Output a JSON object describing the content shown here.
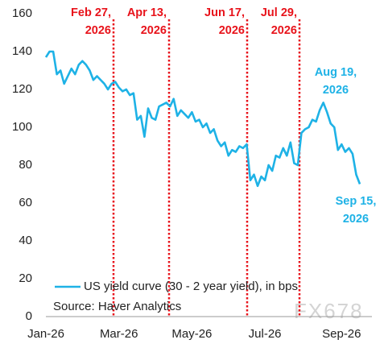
{
  "chart_data": {
    "type": "line",
    "categories": [
      "Jan-26",
      null,
      null,
      null,
      null,
      null,
      null,
      null,
      null,
      null,
      null,
      null,
      null,
      null,
      null,
      null,
      null,
      null,
      null,
      null,
      "Mar-26",
      null,
      null,
      null,
      null,
      null,
      null,
      null,
      null,
      null,
      null,
      null,
      null,
      null,
      null,
      null,
      null,
      null,
      null,
      null,
      "May-26",
      null,
      null,
      null,
      null,
      null,
      null,
      null,
      null,
      null,
      null,
      null,
      null,
      null,
      null,
      null,
      null,
      null,
      null,
      null,
      "Jul-26",
      null,
      null,
      null,
      null,
      null,
      null,
      null,
      null,
      null,
      null,
      null,
      null,
      null,
      null,
      null,
      null,
      null,
      null,
      null,
      null,
      "Sep-26",
      null,
      null,
      null,
      null,
      null
    ],
    "series": [
      {
        "name": "US yield curve (30 - 2 year yield), in bps",
        "color": "#1eb2e6",
        "values": [
          137,
          140,
          140,
          128,
          130,
          123,
          127,
          131,
          128,
          133,
          135,
          133,
          130,
          125,
          127,
          125,
          123,
          120,
          123,
          124,
          121,
          119,
          120,
          117,
          118,
          104,
          106,
          95,
          110,
          105,
          104,
          111,
          112,
          113,
          111,
          115,
          106,
          109,
          107,
          105,
          108,
          103,
          104,
          100,
          102,
          97,
          99,
          93,
          90,
          92,
          85,
          88,
          87,
          90,
          89,
          91,
          72,
          75,
          69,
          74,
          72,
          80,
          77,
          85,
          84,
          89,
          85,
          92,
          81,
          80,
          97,
          99,
          100,
          104,
          103,
          109,
          113,
          108,
          102,
          100,
          88,
          91,
          87,
          89,
          86,
          75,
          70
        ]
      }
    ],
    "ylim": [
      0,
      160
    ],
    "yticks": [
      0,
      20,
      40,
      60,
      80,
      100,
      120,
      140,
      160
    ],
    "grid": false,
    "legend": "bottom-left",
    "event_annotations": [
      {
        "lines": [
          "Feb 27,",
          "2026"
        ],
        "color": "#e8131b"
      },
      {
        "lines": [
          "Apr 13,",
          "2026"
        ],
        "color": "#e8131b"
      },
      {
        "lines": [
          "Jun 17,",
          "2026"
        ],
        "color": "#e8131b"
      },
      {
        "lines": [
          "Jul 29,",
          "2026"
        ],
        "color": "#e8131b"
      }
    ],
    "point_annotations": [
      {
        "lines": [
          "Aug 19,",
          "2026"
        ],
        "color": "#1eb2e6"
      },
      {
        "lines": [
          "Sep 15,",
          "2026"
        ],
        "color": "#1eb2e6"
      }
    ],
    "source": "Source: Haver Analytics",
    "watermark": "FX678"
  }
}
